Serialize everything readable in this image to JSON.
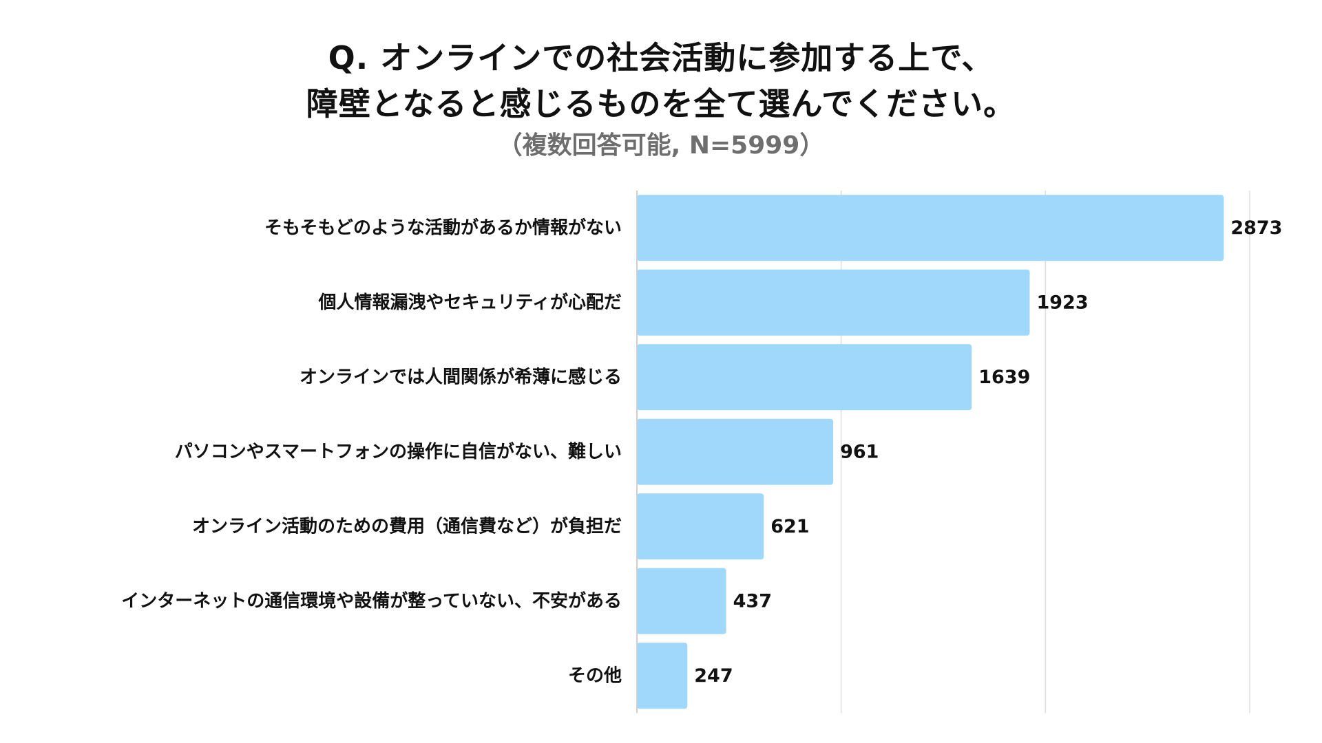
{
  "title_line_1": "Q. オンラインでの社会活動に参加する上で、",
  "title_line_2": "障壁となると感じるものを全て選んでください。",
  "subtitle": "（複数回答可能, N=5999）",
  "colors": {
    "bar": "#9fd8fb",
    "grid": "#dedede",
    "axis": "#cfcfcf"
  },
  "chart_data": {
    "type": "bar",
    "orientation": "horizontal",
    "title": "Q. オンラインでの社会活動に参加する上で、障壁となると感じるものを全て選んでください。",
    "subtitle": "（複数回答可能, N=5999）",
    "categories": [
      "そもそもどのような活動があるか情報がない",
      "個人情報漏洩やセキュリティが心配だ",
      "オンラインでは人間関係が希薄に感じる",
      "パソコンやスマートフォンの操作に自信がない、難しい",
      "オンライン活動のための費用（通信費など）が負担だ",
      "インターネットの通信環境や設備が整っていない、不安がある",
      "その他"
    ],
    "values": [
      2873,
      1923,
      1639,
      961,
      621,
      437,
      247
    ],
    "value_labels": [
      "2873",
      "1923",
      "1639",
      "961",
      "621",
      "437",
      "247"
    ],
    "xlim": [
      0,
      3000
    ],
    "xgrid_step": 1000,
    "grid": true,
    "xlabel": "",
    "ylabel": ""
  }
}
